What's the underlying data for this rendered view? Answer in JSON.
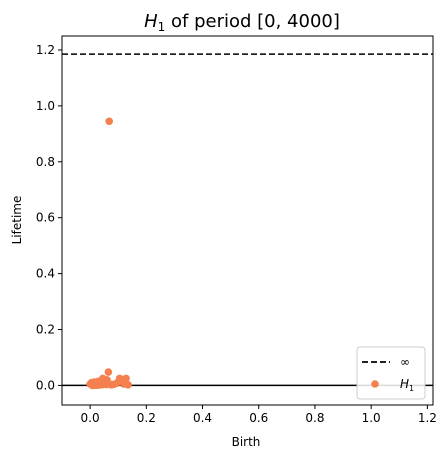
{
  "chart_data": {
    "type": "scatter",
    "title": {
      "symbol": "H",
      "subscript": "1",
      "rest": " of period [0, 4000]"
    },
    "xlabel": "Birth",
    "ylabel": "Lifetime",
    "xlim": [
      -0.1,
      1.22
    ],
    "ylim": [
      -0.07,
      1.25
    ],
    "xticks": [
      0.0,
      0.2,
      0.4,
      0.6,
      0.8,
      1.0,
      1.2
    ],
    "xtick_labels": [
      "0.0",
      "0.2",
      "0.4",
      "0.6",
      "0.8",
      "1.0",
      "1.2"
    ],
    "yticks": [
      0.0,
      0.2,
      0.4,
      0.6,
      0.8,
      1.0,
      1.2
    ],
    "ytick_labels": [
      "0.0",
      "0.2",
      "0.4",
      "0.6",
      "0.8",
      "1.0",
      "1.2"
    ],
    "grid": false,
    "legend_position": "bottom-right",
    "infinity_line": {
      "y": 1.185,
      "style": "dashed",
      "color": "#000000",
      "legend_label": "∞"
    },
    "diagonal_line": {
      "y": 0.0,
      "color": "#000000"
    },
    "series": [
      {
        "legend_symbol": "H",
        "legend_subscript": "1",
        "color": "#f4804f",
        "points": [
          {
            "x": 0.068,
            "y": 0.945
          },
          {
            "x": 0.065,
            "y": 0.048
          },
          {
            "x": 0.045,
            "y": 0.025
          },
          {
            "x": 0.105,
            "y": 0.025
          },
          {
            "x": 0.128,
            "y": 0.025
          },
          {
            "x": 0.06,
            "y": 0.02
          },
          {
            "x": 0.03,
            "y": 0.015
          },
          {
            "x": 0.055,
            "y": 0.01
          },
          {
            "x": 0.095,
            "y": 0.008
          },
          {
            "x": 0.12,
            "y": 0.005
          },
          {
            "x": 0.135,
            "y": 0.002
          },
          {
            "x": 0.0,
            "y": 0.005
          },
          {
            "x": 0.005,
            "y": 0.01
          },
          {
            "x": 0.01,
            "y": 0.005
          },
          {
            "x": 0.015,
            "y": 0.012
          },
          {
            "x": 0.02,
            "y": 0.003
          },
          {
            "x": 0.025,
            "y": 0.008
          },
          {
            "x": 0.03,
            "y": 0.004
          },
          {
            "x": 0.035,
            "y": 0.01
          },
          {
            "x": 0.04,
            "y": 0.006
          },
          {
            "x": 0.045,
            "y": 0.003
          },
          {
            "x": 0.05,
            "y": 0.008
          },
          {
            "x": 0.07,
            "y": 0.005
          },
          {
            "x": 0.075,
            "y": 0.002
          },
          {
            "x": 0.008,
            "y": 0.0
          },
          {
            "x": 0.018,
            "y": 0.001
          },
          {
            "x": 0.028,
            "y": 0.001
          },
          {
            "x": 0.038,
            "y": 0.002
          },
          {
            "x": 0.058,
            "y": 0.003
          },
          {
            "x": 0.085,
            "y": 0.004
          }
        ]
      }
    ]
  }
}
